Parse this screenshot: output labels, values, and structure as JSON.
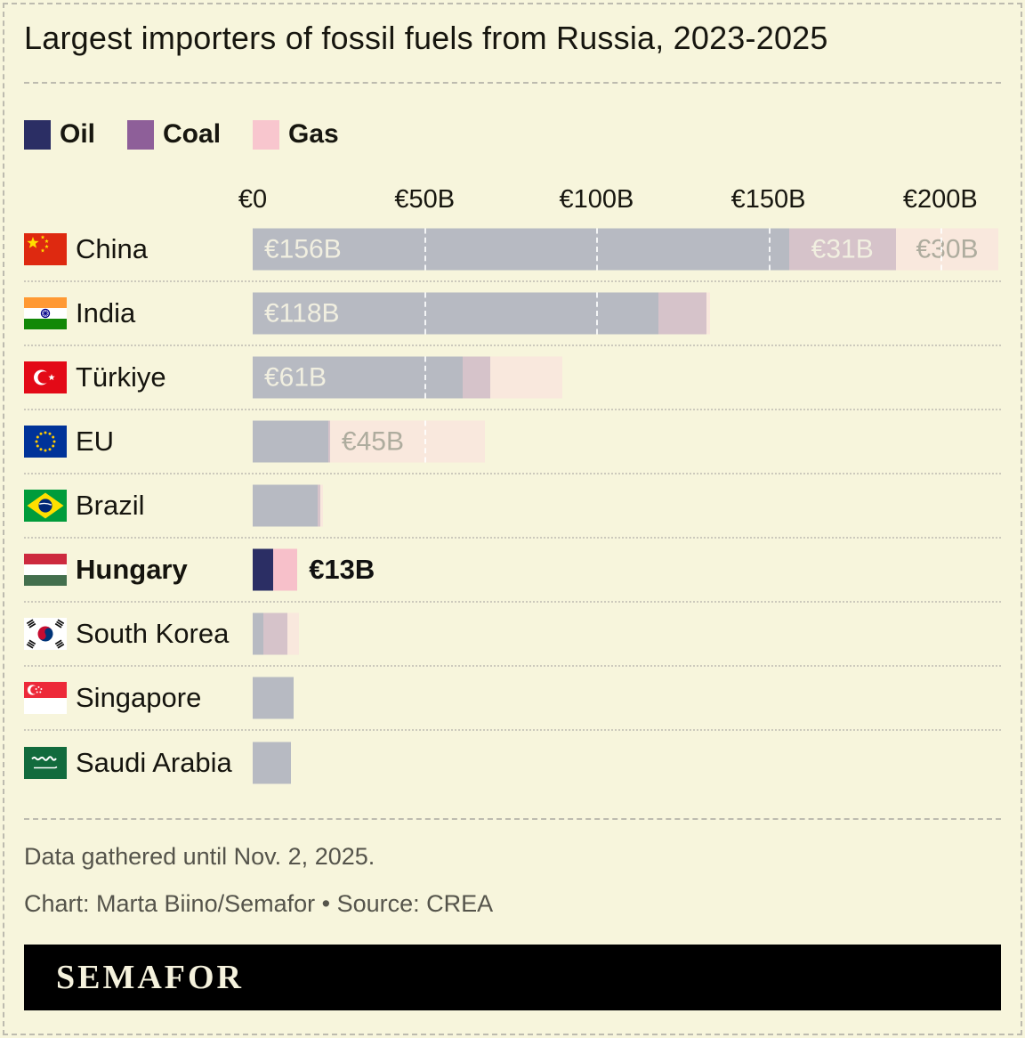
{
  "title": "Largest importers of fossil fuels from Russia, 2023-2025",
  "legend": {
    "items": [
      {
        "label": "Oil",
        "color": "#2b2e64"
      },
      {
        "label": "Coal",
        "color": "#8e5f99"
      },
      {
        "label": "Gas",
        "color": "#f8c6ce"
      }
    ]
  },
  "chart_data": {
    "type": "bar",
    "orientation": "horizontal",
    "stacked": true,
    "unit": "EUR billions",
    "xlim": [
      0,
      218
    ],
    "x_ticks": [
      {
        "label": "€0",
        "value": 0
      },
      {
        "label": "€50B",
        "value": 50
      },
      {
        "label": "€100B",
        "value": 100
      },
      {
        "label": "€150B",
        "value": 150
      },
      {
        "label": "€200B",
        "value": 200
      }
    ],
    "series_names": [
      "Oil",
      "Coal",
      "Gas"
    ],
    "colors": {
      "muted": {
        "oil": "#b7bac2",
        "coal": "#d6c3ca",
        "gas": "#f9e8dd"
      },
      "highlight": {
        "oil": "#2b2e64",
        "coal": "#8e5f99",
        "gas": "#f7c0ca"
      }
    },
    "gridline_values": [
      50,
      100,
      150,
      200
    ],
    "rows": [
      {
        "country": "China",
        "flag": "cn",
        "highlight": false,
        "values": {
          "oil": 156,
          "coal": 31,
          "gas": 30
        },
        "bar_labels": [
          {
            "segment": "oil",
            "text": "€156B",
            "tone": "light",
            "align": "left"
          },
          {
            "segment": "coal",
            "text": "€31B",
            "tone": "light",
            "align": "center"
          },
          {
            "segment": "gas",
            "text": "€30B",
            "tone": "dim",
            "align": "center"
          }
        ]
      },
      {
        "country": "India",
        "flag": "in",
        "highlight": false,
        "values": {
          "oil": 118,
          "coal": 14,
          "gas": 1
        },
        "bar_labels": [
          {
            "segment": "oil",
            "text": "€118B",
            "tone": "light",
            "align": "left"
          }
        ]
      },
      {
        "country": "Türkiye",
        "flag": "tr",
        "highlight": false,
        "values": {
          "oil": 61,
          "coal": 8,
          "gas": 21
        },
        "bar_labels": [
          {
            "segment": "oil",
            "text": "€61B",
            "tone": "light",
            "align": "left"
          }
        ]
      },
      {
        "country": "EU",
        "flag": "eu",
        "highlight": false,
        "values": {
          "oil": 22,
          "coal": 0.5,
          "gas": 45
        },
        "bar_labels": [
          {
            "segment": "gas",
            "text": "€45B",
            "tone": "dim",
            "align": "left"
          }
        ]
      },
      {
        "country": "Brazil",
        "flag": "br",
        "highlight": false,
        "values": {
          "oil": 19,
          "coal": 0.7,
          "gas": 0.7
        },
        "bar_labels": []
      },
      {
        "country": "Hungary",
        "flag": "hu",
        "highlight": true,
        "values": {
          "oil": 6,
          "coal": 0,
          "gas": 7
        },
        "bar_labels": [],
        "total_label": "€13B"
      },
      {
        "country": "South Korea",
        "flag": "kr",
        "highlight": false,
        "values": {
          "oil": 3,
          "coal": 7,
          "gas": 3.5
        },
        "bar_labels": []
      },
      {
        "country": "Singapore",
        "flag": "sg",
        "highlight": false,
        "values": {
          "oil": 12,
          "coal": 0,
          "gas": 0
        },
        "bar_labels": []
      },
      {
        "country": "Saudi Arabia",
        "flag": "sa",
        "highlight": false,
        "values": {
          "oil": 11,
          "coal": 0,
          "gas": 0
        },
        "bar_labels": []
      }
    ]
  },
  "footer": {
    "note": "Data gathered until Nov. 2, 2025.",
    "credit": "Chart: Marta Biino/Semafor • Source: CREA",
    "logo": "SEMAFOR"
  }
}
